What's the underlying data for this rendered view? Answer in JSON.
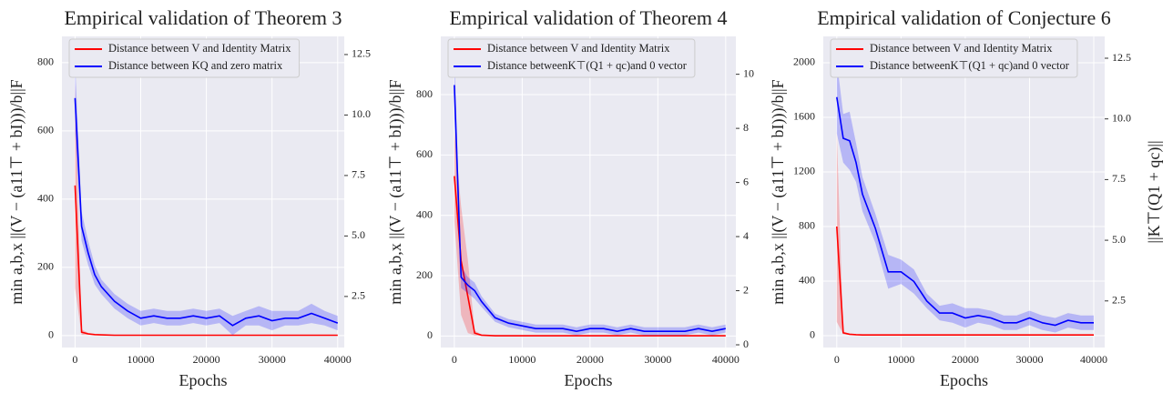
{
  "chart_data": [
    {
      "type": "line",
      "title": "Empirical validation of Theorem 3",
      "xlabel": "Epochs",
      "ylabel": "min a,b,x ||(V − (a11⊤ + bI)))/b||F",
      "legend": "upper left",
      "grid": true,
      "x": [
        0,
        1000,
        2000,
        3000,
        4000,
        6000,
        8000,
        10000,
        12000,
        14000,
        16000,
        18000,
        20000,
        22000,
        24000,
        26000,
        28000,
        30000,
        32000,
        34000,
        36000,
        38000,
        40000
      ],
      "xlim": [
        -2000,
        41000
      ],
      "xticks": [
        0,
        10000,
        20000,
        30000,
        40000
      ],
      "ylim": [
        -35,
        877
      ],
      "yticks": [
        0,
        200,
        400,
        600,
        800
      ],
      "y2lim": [
        0.39,
        13.25
      ],
      "y2ticks": [
        {
          "value": 2.5,
          "label": "2.5"
        },
        {
          "value": 5,
          "label": "5.0"
        },
        {
          "value": 7.5,
          "label": "7.5"
        },
        {
          "value": 10,
          "label": "10.0"
        },
        {
          "value": 12.5,
          "label": "12.5"
        }
      ],
      "series": [
        {
          "name": "Distance between V and Identity Matrix",
          "color": "#ff0000",
          "axis": "y",
          "values": [
            440,
            10,
            5,
            3,
            2,
            1,
            1,
            1,
            1,
            1,
            1,
            1,
            1,
            1,
            1,
            1,
            1,
            1,
            1,
            1,
            1,
            1,
            1
          ],
          "band": [
            300,
            8,
            3,
            2,
            1,
            1,
            1,
            1,
            1,
            1,
            1,
            1,
            1,
            1,
            1,
            1,
            1,
            1,
            1,
            1,
            1,
            1,
            1
          ]
        },
        {
          "name": "Distance between KQ and zero matrix",
          "color": "#0000ff",
          "axis": "y2",
          "values": [
            10.7,
            5.4,
            4.3,
            3.4,
            2.9,
            2.3,
            1.9,
            1.6,
            1.7,
            1.6,
            1.6,
            1.7,
            1.6,
            1.7,
            1.3,
            1.6,
            1.7,
            1.5,
            1.6,
            1.6,
            1.8,
            1.6,
            1.4
          ],
          "band": [
            1.5,
            0.6,
            0.5,
            0.4,
            0.3,
            0.3,
            0.3,
            0.3,
            0.3,
            0.3,
            0.3,
            0.3,
            0.3,
            0.3,
            0.4,
            0.3,
            0.4,
            0.4,
            0.3,
            0.3,
            0.4,
            0.3,
            0.3
          ]
        }
      ]
    },
    {
      "type": "line",
      "title": "Empirical validation of Theorem 4",
      "xlabel": "Epochs",
      "ylabel": "min a,b,x ||(V − (a11⊤ + bI)))/b||F",
      "legend": "upper left",
      "grid": true,
      "x": [
        0,
        1000,
        2000,
        3000,
        4000,
        6000,
        8000,
        10000,
        12000,
        14000,
        16000,
        18000,
        20000,
        22000,
        24000,
        26000,
        28000,
        30000,
        32000,
        34000,
        36000,
        38000,
        40000
      ],
      "xlim": [
        -2000,
        41500
      ],
      "xticks": [
        0,
        10000,
        20000,
        30000,
        40000
      ],
      "ylim": [
        -38,
        993
      ],
      "yticks": [
        0,
        200,
        400,
        600,
        800
      ],
      "y2lim": [
        -0.1,
        11.4
      ],
      "y2ticks": [
        0,
        2,
        4,
        6,
        8,
        10
      ],
      "series": [
        {
          "name": "Distance between V and Identity Matrix",
          "color": "#ff0000",
          "axis": "y",
          "values": [
            530,
            250,
            130,
            10,
            3,
            1,
            1,
            1,
            1,
            1,
            1,
            1,
            1,
            1,
            1,
            1,
            1,
            1,
            1,
            1,
            1,
            1,
            1
          ],
          "band": [
            150,
            180,
            120,
            8,
            2,
            1,
            1,
            1,
            1,
            1,
            1,
            1,
            1,
            1,
            1,
            1,
            1,
            1,
            1,
            1,
            1,
            1,
            1
          ]
        },
        {
          "name": "Distance betweenK⊤(Q1 + qc)and 0 vector",
          "color": "#0000ff",
          "axis": "y2",
          "values": [
            9.6,
            2.5,
            2.2,
            2.0,
            1.6,
            1.0,
            0.8,
            0.7,
            0.6,
            0.6,
            0.6,
            0.5,
            0.6,
            0.6,
            0.5,
            0.6,
            0.5,
            0.5,
            0.5,
            0.5,
            0.6,
            0.5,
            0.6
          ],
          "band": [
            1.2,
            0.4,
            0.3,
            0.3,
            0.2,
            0.15,
            0.15,
            0.15,
            0.15,
            0.15,
            0.15,
            0.15,
            0.15,
            0.15,
            0.15,
            0.15,
            0.15,
            0.15,
            0.15,
            0.15,
            0.15,
            0.15,
            0.15
          ]
        }
      ]
    },
    {
      "type": "line",
      "title": "Empirical validation of Conjecture 6",
      "xlabel": "Epochs",
      "ylabel": "min a,b,x ||(V − (a11⊤ + bI)))/b||F",
      "y2label": "||K⊤(Q1 + qc)||",
      "legend": "upper left",
      "grid": true,
      "x": [
        0,
        1000,
        2000,
        3000,
        4000,
        6000,
        8000,
        10000,
        12000,
        14000,
        16000,
        18000,
        20000,
        22000,
        24000,
        26000,
        28000,
        30000,
        32000,
        34000,
        36000,
        38000,
        40000
      ],
      "xlim": [
        -2100,
        41700
      ],
      "xticks": [
        0,
        10000,
        20000,
        30000,
        40000
      ],
      "ylim": [
        -87,
        2193
      ],
      "yticks": [
        0,
        400,
        800,
        1200,
        1600,
        2000
      ],
      "y2lim": [
        0.58,
        13.4
      ],
      "y2ticks": [
        2.5,
        {
          "value": 5,
          "label": "5.0"
        },
        7.5,
        {
          "value": 10,
          "label": "10.0"
        },
        12.5
      ],
      "series": [
        {
          "name": "Distance between V and Identity Matrix",
          "color": "#ff0000",
          "axis": "y",
          "values": [
            800,
            20,
            10,
            7,
            5,
            5,
            5,
            5,
            5,
            5,
            5,
            5,
            5,
            5,
            5,
            5,
            5,
            5,
            5,
            5,
            5,
            5,
            5
          ],
          "band": [
            700,
            10,
            5,
            3,
            2,
            2,
            2,
            2,
            2,
            2,
            2,
            2,
            2,
            2,
            2,
            2,
            2,
            2,
            2,
            2,
            2,
            2,
            2
          ]
        },
        {
          "name": "Distance betweenK⊤(Q1 + qc)and 0 vector",
          "color": "#0000ff",
          "axis": "y2",
          "values": [
            10.9,
            9.2,
            9.1,
            8.2,
            6.9,
            5.5,
            3.7,
            3.7,
            3.3,
            2.5,
            2.0,
            2.0,
            1.8,
            1.9,
            1.8,
            1.6,
            1.6,
            1.8,
            1.6,
            1.5,
            1.7,
            1.6,
            1.6
          ],
          "band": [
            1.5,
            1.0,
            1.2,
            0.8,
            0.7,
            0.6,
            0.7,
            0.5,
            0.5,
            0.3,
            0.3,
            0.4,
            0.4,
            0.3,
            0.3,
            0.3,
            0.3,
            0.3,
            0.3,
            0.3,
            0.3,
            0.3,
            0.3
          ]
        }
      ]
    }
  ]
}
